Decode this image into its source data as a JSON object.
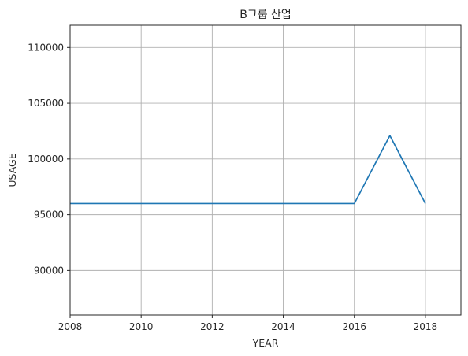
{
  "chart_data": {
    "type": "line",
    "title": "B그룹 산업",
    "xlabel": "YEAR",
    "ylabel": "USAGE",
    "xlim": [
      2008,
      2019
    ],
    "ylim": [
      86000,
      112000
    ],
    "x_ticks": [
      2008,
      2010,
      2012,
      2014,
      2016,
      2018
    ],
    "y_ticks": [
      90000,
      95000,
      100000,
      105000,
      110000
    ],
    "grid": true,
    "series": [
      {
        "color": "#1f77b4",
        "x": [
          2008,
          2009,
          2010,
          2011,
          2012,
          2013,
          2014,
          2015,
          2016,
          2017,
          2018
        ],
        "y": [
          96000,
          96000,
          96000,
          96000,
          96000,
          96000,
          96000,
          96000,
          96000,
          102100,
          96000
        ]
      }
    ]
  }
}
